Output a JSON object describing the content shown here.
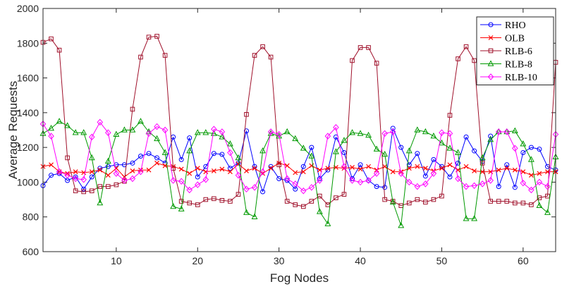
{
  "chart_data": {
    "type": "line",
    "xlabel": "Fog  Nodes",
    "ylabel": "Average  Requests",
    "xlim": [
      1,
      64
    ],
    "ylim": [
      600,
      2000
    ],
    "xticks": [
      10,
      20,
      30,
      40,
      50,
      60
    ],
    "yticks": [
      600,
      800,
      1000,
      1200,
      1400,
      1600,
      1800,
      2000
    ],
    "legend_position": "top-right",
    "x": [
      1,
      2,
      3,
      4,
      5,
      6,
      7,
      8,
      9,
      10,
      11,
      12,
      13,
      14,
      15,
      16,
      17,
      18,
      19,
      20,
      21,
      22,
      23,
      24,
      25,
      26,
      27,
      28,
      29,
      30,
      31,
      32,
      33,
      34,
      35,
      36,
      37,
      38,
      39,
      40,
      41,
      42,
      43,
      44,
      45,
      46,
      47,
      48,
      49,
      50,
      51,
      52,
      53,
      54,
      55,
      56,
      57,
      58,
      59,
      60,
      61,
      62,
      63,
      64
    ],
    "series": [
      {
        "name": "RHO",
        "color": "#0000ff",
        "marker": "circle",
        "values": [
          980,
          1040,
          1050,
          1010,
          1030,
          960,
          1030,
          1080,
          1090,
          1100,
          1100,
          1110,
          1150,
          1165,
          1140,
          1110,
          1260,
          1130,
          1255,
          1030,
          1090,
          1165,
          1160,
          1080,
          1110,
          1295,
          1090,
          945,
          1090,
          1020,
          1010,
          960,
          1090,
          1200,
          1020,
          1070,
          1260,
          1170,
          1020,
          1100,
          1010,
          975,
          970,
          1310,
          1200,
          1100,
          1165,
          1035,
          1130,
          1090,
          1030,
          1110,
          1260,
          1180,
          1120,
          1265,
          975,
          1100,
          970,
          1170,
          1200,
          1190,
          1090,
          1070
        ]
      },
      {
        "name": "OLB",
        "color": "#ff0000",
        "marker": "x",
        "values": [
          1090,
          1100,
          1060,
          1050,
          1060,
          1055,
          1060,
          1070,
          1040,
          1080,
          1030,
          1065,
          1070,
          1070,
          1110,
          1095,
          1090,
          1075,
          1050,
          1080,
          1060,
          1065,
          1075,
          1060,
          1105,
          1065,
          1080,
          1050,
          1080,
          1110,
          1095,
          1055,
          1060,
          1095,
          1070,
          1080,
          1085,
          1080,
          1085,
          1075,
          1090,
          1070,
          1090,
          1060,
          1060,
          1080,
          1090,
          1080,
          1065,
          1080,
          1100,
          1070,
          1090,
          1065,
          1060,
          1060,
          1070,
          1080,
          1070,
          1060,
          1040,
          1050,
          1060,
          1060
        ]
      },
      {
        "name": "RLB-6",
        "color": "#a0112b",
        "marker": "square",
        "values": [
          1805,
          1825,
          1760,
          1140,
          950,
          945,
          950,
          975,
          975,
          985,
          1005,
          1420,
          1720,
          1835,
          1840,
          1730,
          1080,
          890,
          880,
          870,
          900,
          905,
          895,
          890,
          930,
          1390,
          1730,
          1780,
          1720,
          1100,
          890,
          870,
          860,
          890,
          920,
          870,
          910,
          930,
          1700,
          1775,
          1775,
          1685,
          900,
          890,
          865,
          880,
          900,
          885,
          900,
          920,
          1385,
          1710,
          1780,
          1700,
          1110,
          890,
          890,
          890,
          880,
          880,
          870,
          910,
          920,
          1690
        ]
      },
      {
        "name": "RLB-8",
        "color": "#009900",
        "marker": "triangle",
        "values": [
          1280,
          1310,
          1350,
          1325,
          1285,
          1285,
          1140,
          880,
          1120,
          1275,
          1300,
          1300,
          1350,
          1290,
          1250,
          1170,
          860,
          845,
          1180,
          1285,
          1285,
          1280,
          1260,
          1220,
          1140,
          825,
          800,
          1180,
          1280,
          1265,
          1290,
          1250,
          1195,
          1150,
          830,
          760,
          1175,
          1240,
          1285,
          1280,
          1270,
          1190,
          1160,
          885,
          750,
          1180,
          1300,
          1290,
          1265,
          1225,
          1195,
          1170,
          790,
          790,
          1140,
          1245,
          1290,
          1290,
          1295,
          1220,
          1130,
          865,
          825,
          1145
        ]
      },
      {
        "name": "RLB-10",
        "color": "#ff00ff",
        "marker": "diamond",
        "values": [
          1335,
          1265,
          1060,
          1040,
          1020,
          1015,
          1260,
          1345,
          1285,
          1050,
          1010,
          1020,
          1060,
          1280,
          1320,
          1300,
          1010,
          1005,
          955,
          985,
          1015,
          1305,
          1290,
          1170,
          1040,
          960,
          970,
          1060,
          1290,
          1275,
          1020,
          990,
          950,
          970,
          1010,
          1265,
          1315,
          1090,
          1010,
          1000,
          1010,
          1050,
          1280,
          1290,
          1050,
          1000,
          975,
          990,
          1050,
          1285,
          1280,
          1020,
          975,
          980,
          990,
          1010,
          1290,
          1290,
          1195,
          995,
          955,
          1000,
          975,
          1275
        ]
      }
    ]
  }
}
